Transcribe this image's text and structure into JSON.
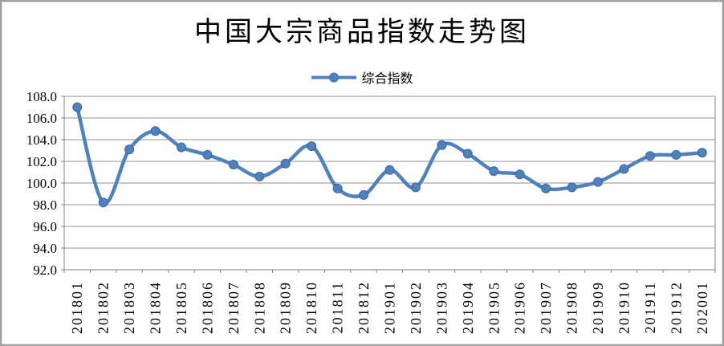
{
  "chart_data": {
    "type": "line",
    "title": "中国大宗商品指数走势图",
    "legend": {
      "label": "综合指数",
      "position": "top-center"
    },
    "categories": [
      "201801",
      "201802",
      "201803",
      "201804",
      "201805",
      "201806",
      "201807",
      "201808",
      "201809",
      "201810",
      "201811",
      "201812",
      "201901",
      "201902",
      "201903",
      "201904",
      "201905",
      "201906",
      "201907",
      "201908",
      "201909",
      "201910",
      "201911",
      "201912",
      "202001"
    ],
    "series": [
      {
        "name": "综合指数",
        "color": "#4F81BD",
        "marker": "circle",
        "marker_edge": "#3A679D",
        "smoothed": true,
        "values": [
          107.0,
          98.2,
          103.1,
          104.8,
          103.3,
          102.6,
          101.7,
          100.6,
          101.8,
          103.4,
          99.5,
          98.9,
          101.2,
          99.6,
          103.5,
          102.7,
          101.1,
          100.8,
          99.5,
          99.6,
          100.1,
          101.3,
          102.5,
          102.6,
          102.8
        ]
      }
    ],
    "ylim": [
      92,
      108
    ],
    "ytick_step": 2,
    "ytick_labels": [
      "92.0",
      "94.0",
      "96.0",
      "98.0",
      "100.0",
      "102.0",
      "104.0",
      "106.0",
      "108.0"
    ],
    "xlabel": "",
    "ylabel": "",
    "grid": true,
    "grid_color": "#909090",
    "axis_color": "#808080",
    "tick_label_color": "#000000",
    "background": "#FFFFFF",
    "frame_border_color": "#A0A0A0"
  }
}
